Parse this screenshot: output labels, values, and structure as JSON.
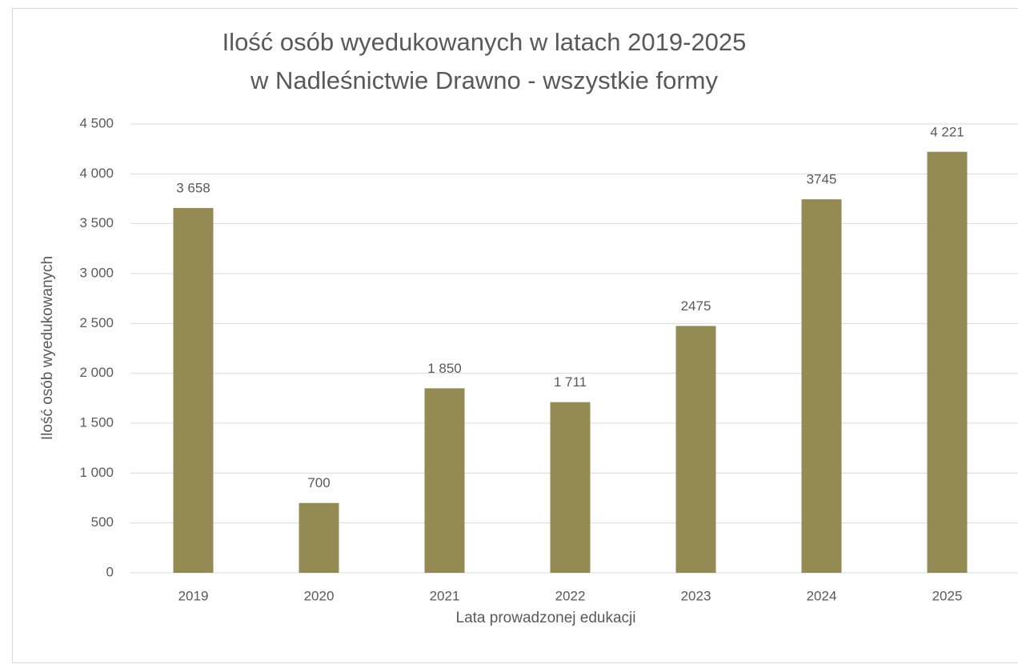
{
  "chart_data": {
    "type": "bar",
    "title": [
      "Ilość osób wyedukowanych w latach 2019-2025",
      "w Nadleśnictwie Drawno - wszystkie formy"
    ],
    "x_label": "Lata prowadzonej edukacji",
    "y_label": "Ilość osób wyedukowanych",
    "categories": [
      "2019",
      "2020",
      "2021",
      "2022",
      "2023",
      "2024",
      "2025"
    ],
    "values": [
      3658,
      700,
      1850,
      1711,
      2475,
      3745,
      4221
    ],
    "value_labels": [
      "3 658",
      "700",
      "1 850",
      "1 711",
      "2475",
      "3745",
      "4 221"
    ],
    "color": "#948a54",
    "ylim": [
      0,
      4500
    ],
    "yticks": [
      0,
      500,
      {
        "value": 1000,
        "label": "1 000"
      },
      {
        "value": 1500,
        "label": "1 500"
      },
      {
        "value": 2000,
        "label": "2 000"
      },
      {
        "value": 2500,
        "label": "2 500"
      },
      {
        "value": 3000,
        "label": "3 000"
      },
      {
        "value": 3500,
        "label": "3 500"
      },
      {
        "value": 4000,
        "label": "4 000"
      },
      {
        "value": 4500,
        "label": "4 500"
      }
    ],
    "grid": true
  }
}
